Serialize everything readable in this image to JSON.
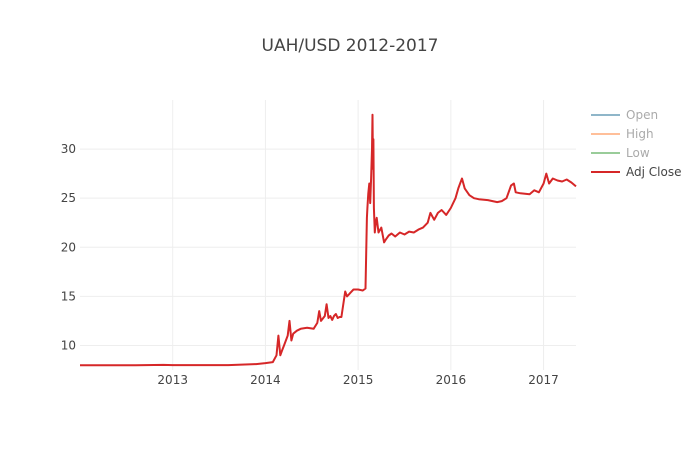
{
  "chart_data": {
    "type": "line",
    "title": "UAH/USD 2012-2017",
    "xlabel": "",
    "ylabel": "",
    "xlim": [
      2012.0,
      2017.35
    ],
    "ylim": [
      7.5,
      35.0
    ],
    "x_ticks": [
      {
        "value": 2013,
        "label": "2013"
      },
      {
        "value": 2014,
        "label": "2014"
      },
      {
        "value": 2015,
        "label": "2015"
      },
      {
        "value": 2016,
        "label": "2016"
      },
      {
        "value": 2017,
        "label": "2017"
      }
    ],
    "y_ticks": [
      {
        "value": 10,
        "label": "10"
      },
      {
        "value": 15,
        "label": "15"
      },
      {
        "value": 20,
        "label": "20"
      },
      {
        "value": 25,
        "label": "25"
      },
      {
        "value": 30,
        "label": "30"
      }
    ],
    "grid": true,
    "legend_position": "top-right",
    "series": [
      {
        "name": "Open",
        "color": "#8fb6c9",
        "visible_line": false,
        "values": []
      },
      {
        "name": "High",
        "color": "#ffbf99",
        "visible_line": false,
        "values": []
      },
      {
        "name": "Low",
        "color": "#99cc99",
        "visible_line": false,
        "values": []
      },
      {
        "name": "Adj Close",
        "color": "#d62728",
        "visible_line": true,
        "x": [
          2012.0,
          2012.3,
          2012.6,
          2012.9,
          2013.0,
          2013.3,
          2013.6,
          2013.9,
          2014.0,
          2014.08,
          2014.12,
          2014.14,
          2014.16,
          2014.18,
          2014.2,
          2014.24,
          2014.26,
          2014.28,
          2014.3,
          2014.34,
          2014.38,
          2014.45,
          2014.52,
          2014.56,
          2014.58,
          2014.6,
          2014.64,
          2014.66,
          2014.68,
          2014.7,
          2014.72,
          2014.74,
          2014.76,
          2014.78,
          2014.8,
          2014.82,
          2014.86,
          2014.88,
          2014.9,
          2014.92,
          2014.95,
          2015.0,
          2015.05,
          2015.08,
          2015.095,
          2015.1,
          2015.11,
          2015.12,
          2015.13,
          2015.14,
          2015.15,
          2015.155,
          2015.16,
          2015.165,
          2015.17,
          2015.18,
          2015.19,
          2015.2,
          2015.22,
          2015.25,
          2015.28,
          2015.3,
          2015.33,
          2015.36,
          2015.4,
          2015.45,
          2015.5,
          2015.55,
          2015.6,
          2015.65,
          2015.7,
          2015.75,
          2015.78,
          2015.82,
          2015.86,
          2015.9,
          2015.95,
          2016.0,
          2016.05,
          2016.08,
          2016.1,
          2016.12,
          2016.15,
          2016.2,
          2016.25,
          2016.3,
          2016.4,
          2016.5,
          2016.55,
          2016.6,
          2016.65,
          2016.68,
          2016.7,
          2016.75,
          2016.85,
          2016.9,
          2016.95,
          2017.0,
          2017.03,
          2017.06,
          2017.1,
          2017.15,
          2017.2,
          2017.25,
          2017.3,
          2017.35
        ],
        "values": [
          7.99,
          7.99,
          7.99,
          8.02,
          8.0,
          8.0,
          8.0,
          8.1,
          8.2,
          8.3,
          9.0,
          11.0,
          9.0,
          9.5,
          10.0,
          11.0,
          12.5,
          10.5,
          11.2,
          11.5,
          11.7,
          11.8,
          11.7,
          12.3,
          13.5,
          12.5,
          13.0,
          14.2,
          12.8,
          13.0,
          12.6,
          13.0,
          13.2,
          12.8,
          12.9,
          12.9,
          15.5,
          15.0,
          15.2,
          15.4,
          15.7,
          15.7,
          15.6,
          15.8,
          23.0,
          24.0,
          25.5,
          26.5,
          24.5,
          27.0,
          30.0,
          33.5,
          28.0,
          31.0,
          24.0,
          21.5,
          22.5,
          23.0,
          21.5,
          22.0,
          20.5,
          20.8,
          21.2,
          21.4,
          21.1,
          21.5,
          21.3,
          21.6,
          21.5,
          21.8,
          22.0,
          22.5,
          23.5,
          22.8,
          23.5,
          23.8,
          23.3,
          24.0,
          25.0,
          26.0,
          26.5,
          27.0,
          26.0,
          25.3,
          25.0,
          24.9,
          24.8,
          24.6,
          24.7,
          25.0,
          26.3,
          26.5,
          25.6,
          25.5,
          25.4,
          25.8,
          25.6,
          26.5,
          27.5,
          26.5,
          27.0,
          26.8,
          26.7,
          26.9,
          26.6,
          26.2
        ]
      }
    ]
  }
}
